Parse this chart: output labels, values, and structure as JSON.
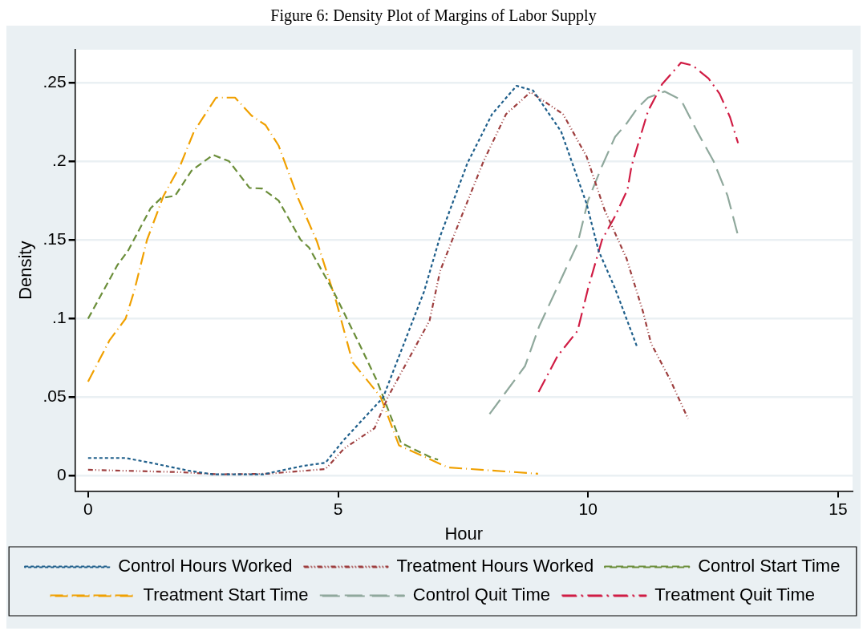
{
  "chart_data": {
    "type": "line",
    "title": "Figure 6: Density Plot of Margins of Labor Supply",
    "xlabel": "Hour",
    "ylabel": "Density",
    "xlim": [
      -0.26,
      15.29
    ],
    "ylim": [
      -0.01,
      0.271
    ],
    "xticks": [
      0,
      5,
      10,
      15
    ],
    "yticks": [
      0,
      {
        "value": 0.05,
        "label": ".05"
      },
      {
        "value": 0.1,
        "label": ".1"
      },
      {
        "value": 0.15,
        "label": ".15"
      },
      {
        "value": 0.2,
        "label": ".2"
      },
      {
        "value": 0.25,
        "label": ".25"
      }
    ],
    "grid": "y",
    "legend": "bottom",
    "marker": "none",
    "series": [
      {
        "name": "Control Hours Worked",
        "color": "#1f5f8b",
        "line_style": "dotted",
        "x": [
          0,
          0.75,
          1.25,
          2.0,
          2.5,
          3.5,
          4.3,
          4.75,
          5.1,
          5.9,
          6.72,
          7.04,
          7.59,
          8.08,
          8.57,
          8.9,
          9.46,
          9.97,
          10.21,
          10.54,
          10.99
        ],
        "values": [
          0.011,
          0.011,
          0.008,
          0.003,
          0.0006,
          0.0006,
          0.006,
          0.008,
          0.022,
          0.0495,
          0.117,
          0.152,
          0.199,
          0.23,
          0.248,
          0.245,
          0.219,
          0.173,
          0.143,
          0.119,
          0.081
        ]
      },
      {
        "name": "Treatment Hours Worked",
        "color": "#9e3f3f",
        "line_style": "dotted",
        "x": [
          0,
          1.84,
          2.6,
          3.6,
          4.75,
          5.12,
          5.73,
          6.0,
          6.83,
          7.04,
          7.42,
          7.91,
          8.36,
          8.85,
          9.5,
          9.97,
          10.33,
          10.77,
          11.1,
          11.26,
          11.64,
          12.0
        ],
        "values": [
          0.0035,
          0.002,
          0.0006,
          0.001,
          0.004,
          0.017,
          0.03,
          0.05,
          0.0985,
          0.13,
          0.161,
          0.2,
          0.23,
          0.244,
          0.23,
          0.203,
          0.169,
          0.138,
          0.104,
          0.084,
          0.061,
          0.036
        ]
      },
      {
        "name": "Control Start Time",
        "color": "#6b8e3a",
        "line_style": "dashed",
        "x": [
          0,
          0.59,
          0.8,
          1.25,
          1.46,
          1.74,
          2.07,
          2.5,
          2.82,
          3.23,
          3.48,
          3.81,
          4.25,
          4.42,
          4.91,
          5.45,
          5.78,
          6.26,
          6.88,
          7.0
        ],
        "values": [
          0.0997,
          0.134,
          0.143,
          0.17,
          0.1765,
          0.178,
          0.194,
          0.204,
          0.2,
          0.183,
          0.1826,
          0.175,
          0.15,
          0.145,
          0.117,
          0.082,
          0.06,
          0.0206,
          0.011,
          0.01
        ]
      },
      {
        "name": "Treatment Start Time",
        "color": "#f0a000",
        "line_style": "dashed",
        "x": [
          0,
          0.43,
          0.75,
          0.92,
          1.18,
          1.51,
          1.84,
          2.12,
          2.56,
          2.94,
          3.27,
          3.55,
          3.81,
          4.2,
          4.58,
          4.96,
          5.29,
          5.85,
          6.22,
          7.2,
          7.65,
          9.0
        ],
        "values": [
          0.0596,
          0.086,
          0.0997,
          0.117,
          0.15,
          0.178,
          0.197,
          0.219,
          0.2405,
          0.2405,
          0.229,
          0.223,
          0.21,
          0.1765,
          0.1487,
          0.111,
          0.072,
          0.05,
          0.019,
          0.005,
          0.004,
          0.001
        ]
      },
      {
        "name": "Control Quit Time",
        "color": "#8fa89c",
        "line_style": "dashed",
        "x": [
          8.03,
          8.74,
          9.02,
          9.79,
          10.0,
          10.28,
          10.54,
          10.77,
          10.99,
          11.2,
          11.53,
          11.86,
          12.18,
          12.51,
          12.79,
          13.0
        ],
        "values": [
          0.039,
          0.0696,
          0.0947,
          0.1475,
          0.175,
          0.197,
          0.2155,
          0.224,
          0.234,
          0.2405,
          0.2444,
          0.239,
          0.219,
          0.2,
          0.178,
          0.1525
        ]
      },
      {
        "name": "Treatment Quit Time",
        "color": "#d01c44",
        "line_style": "dashed",
        "x": [
          9.01,
          9.39,
          9.79,
          10.0,
          10.28,
          10.54,
          10.79,
          10.87,
          11.2,
          11.48,
          11.86,
          12.09,
          12.41,
          12.63,
          12.84,
          13.0
        ],
        "values": [
          0.053,
          0.076,
          0.092,
          0.119,
          0.15,
          0.165,
          0.182,
          0.197,
          0.232,
          0.249,
          0.2628,
          0.261,
          0.2527,
          0.243,
          0.228,
          0.2115
        ]
      }
    ]
  }
}
